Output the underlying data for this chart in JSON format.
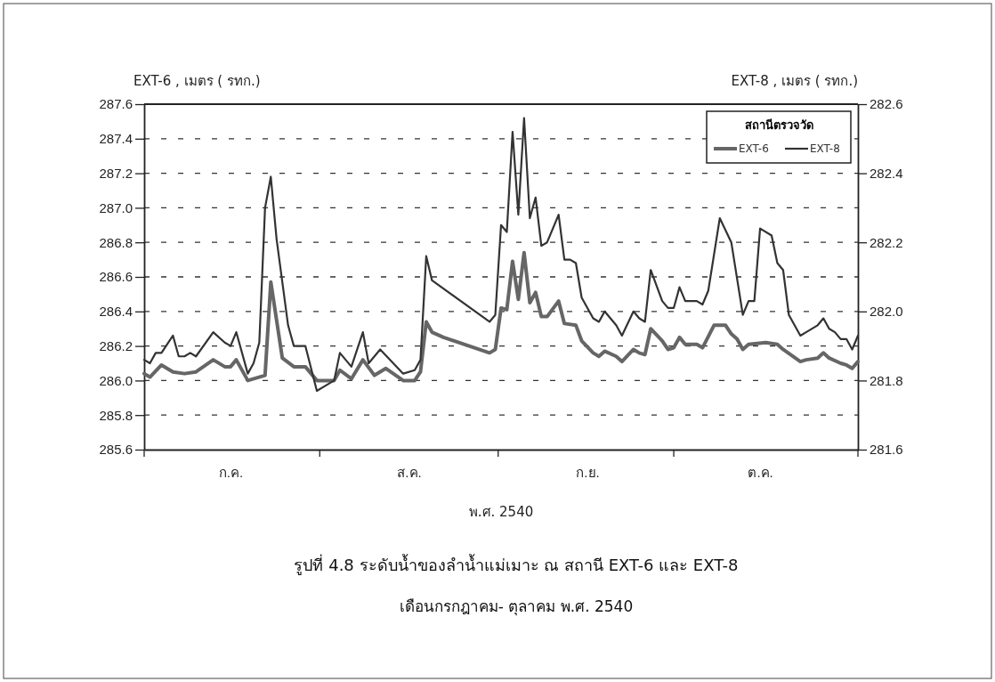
{
  "chart_data": {
    "type": "line",
    "title": "รูปที่  4.8   ระดับน้ำของลำน้ำแม่เมาะ  ณ  สถานี  EXT-6 และ EXT-8",
    "subtitle": "เดือนกรกฎาคม- ตุลาคม  พ.ศ. 2540",
    "xlabel": "พ.ศ. 2540",
    "ylabel": "EXT-6 , เมตร ( รทก.)",
    "y2label": "EXT-8 , เมตร ( รทก.)",
    "legend_title": "สถานีตรวจวัด",
    "legend": "top right",
    "grid": "y",
    "line_style": "solid",
    "marker": "none",
    "categories": [
      null,
      null,
      null,
      null,
      null,
      null,
      null,
      null,
      null,
      null,
      null,
      null,
      null,
      null,
      null,
      "ก.ค.",
      null,
      null,
      null,
      null,
      null,
      null,
      null,
      null,
      null,
      null,
      null,
      null,
      null,
      null,
      null,
      null,
      null,
      null,
      null,
      null,
      null,
      null,
      null,
      null,
      null,
      null,
      null,
      null,
      null,
      null,
      "ส.ค.",
      null,
      null,
      null,
      null,
      null,
      null,
      null,
      null,
      null,
      null,
      null,
      null,
      null,
      null,
      null,
      null,
      null,
      null,
      null,
      null,
      null,
      null,
      null,
      null,
      null,
      null,
      null,
      null,
      null,
      null,
      "ก.ย.",
      null,
      null,
      null,
      null,
      null,
      null,
      null,
      null,
      null,
      null,
      null,
      null,
      null,
      null,
      null,
      null,
      null,
      null,
      null,
      null,
      null,
      null,
      null,
      null,
      null,
      null,
      null,
      null,
      null,
      "ต.ค.",
      null,
      null,
      null,
      null,
      null,
      null,
      null,
      null,
      null,
      null,
      null,
      null,
      null,
      null,
      null,
      null,
      null
    ],
    "ylim": [
      285.6,
      287.6
    ],
    "yticks": [
      285.6,
      285.8,
      {
        "value": 286,
        "label": "286.0"
      },
      286.2,
      286.4,
      286.6,
      286.8,
      {
        "value": 287,
        "label": "287.0"
      },
      287.2,
      287.4,
      287.6
    ],
    "y2lim": [
      281.6,
      282.6
    ],
    "y2ticks": [
      281.6,
      281.8,
      {
        "value": 282,
        "label": "282.0"
      },
      282.2,
      282.4,
      282.6
    ],
    "series": [
      {
        "name": "EXT-6",
        "color": "#666666",
        "values": [
          286.04,
          286.02,
          null,
          286.09,
          null,
          286.05,
          null,
          286.04,
          null,
          286.05,
          null,
          null,
          286.12,
          null,
          286.08,
          286.08,
          286.12,
          null,
          286.0,
          null,
          null,
          286.03,
          286.57,
          null,
          286.13,
          null,
          286.08,
          null,
          286.08,
          null,
          286.0,
          null,
          null,
          286.0,
          286.06,
          null,
          286.01,
          null,
          286.12,
          null,
          286.03,
          null,
          286.07,
          null,
          null,
          286.0,
          null,
          286.0,
          286.05,
          286.34,
          286.28,
          null,
          286.25,
          null,
          null,
          null,
          null,
          null,
          null,
          null,
          286.16,
          286.18,
          286.42,
          286.41,
          286.69,
          286.47,
          286.74,
          286.45,
          286.51,
          286.37,
          286.37,
          null,
          286.46,
          286.33,
          null,
          286.32,
          286.23,
          null,
          286.16,
          286.14,
          286.17,
          null,
          286.14,
          286.11,
          null,
          286.18,
          286.16,
          286.15,
          286.3,
          null,
          286.23,
          286.18,
          286.19,
          286.25,
          286.21,
          null,
          286.21,
          286.19,
          null,
          286.32,
          null,
          286.32,
          286.27,
          286.24,
          286.18,
          286.21,
          null,
          null,
          286.22,
          null,
          286.21,
          286.18,
          null,
          null,
          286.11,
          286.12,
          null,
          286.13,
          286.16,
          286.13,
          null,
          286.1,
          286.09,
          286.07,
          286.11
        ]
      },
      {
        "name": "EXT-8",
        "color": "#333333",
        "axis": "y2",
        "values": [
          281.86,
          281.85,
          281.88,
          281.88,
          null,
          281.93,
          281.87,
          281.87,
          281.88,
          281.87,
          null,
          null,
          281.94,
          null,
          281.91,
          281.9,
          281.94,
          null,
          281.82,
          281.85,
          281.91,
          282.3,
          282.39,
          282.21,
          null,
          281.96,
          281.9,
          281.9,
          281.9,
          null,
          281.77,
          281.78,
          null,
          281.8,
          281.88,
          null,
          281.84,
          null,
          281.94,
          281.85,
          null,
          281.89,
          null,
          null,
          null,
          281.82,
          null,
          281.83,
          281.86,
          282.16,
          282.09,
          null,
          null,
          null,
          null,
          null,
          null,
          null,
          null,
          null,
          281.97,
          281.99,
          282.25,
          282.23,
          282.52,
          282.28,
          282.56,
          282.27,
          282.33,
          282.19,
          282.2,
          null,
          282.28,
          282.15,
          282.15,
          282.14,
          282.04,
          null,
          281.98,
          281.97,
          282.0,
          null,
          281.96,
          281.93,
          null,
          282.0,
          281.98,
          281.97,
          282.12,
          null,
          282.03,
          282.01,
          282.01,
          282.07,
          282.03,
          null,
          282.03,
          282.02,
          282.06,
          null,
          282.27,
          null,
          282.2,
          null,
          281.99,
          282.03,
          282.03,
          282.24,
          null,
          282.22,
          282.14,
          282.12,
          281.99,
          null,
          281.93,
          281.94,
          null,
          281.96,
          281.98,
          281.95,
          281.94,
          281.92,
          281.92,
          281.89,
          281.93
        ]
      }
    ]
  }
}
